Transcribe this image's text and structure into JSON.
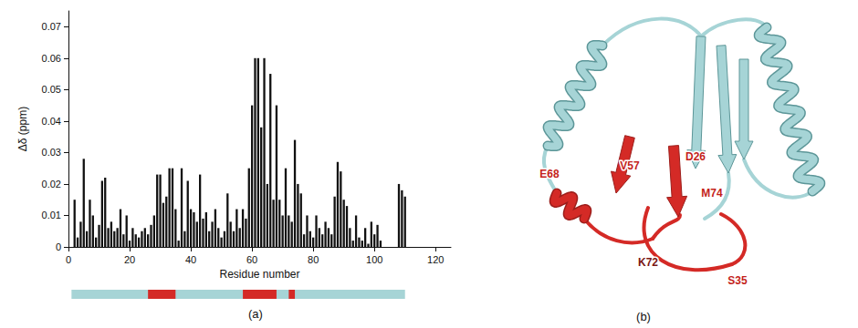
{
  "chart_data": {
    "type": "bar",
    "x_label": "Residue number",
    "y_label": "Δδ (ppm)",
    "x": [
      1,
      2,
      3,
      4,
      5,
      6,
      7,
      8,
      9,
      10,
      11,
      12,
      13,
      14,
      15,
      16,
      17,
      18,
      19,
      20,
      21,
      22,
      23,
      24,
      25,
      26,
      27,
      28,
      29,
      30,
      31,
      32,
      33,
      34,
      35,
      36,
      37,
      38,
      39,
      40,
      41,
      42,
      43,
      44,
      45,
      46,
      47,
      48,
      49,
      50,
      51,
      52,
      53,
      54,
      55,
      56,
      57,
      58,
      59,
      60,
      61,
      62,
      63,
      64,
      65,
      66,
      67,
      68,
      69,
      70,
      71,
      72,
      73,
      74,
      75,
      76,
      77,
      78,
      79,
      80,
      81,
      82,
      83,
      84,
      85,
      86,
      87,
      88,
      89,
      90,
      91,
      92,
      93,
      94,
      95,
      96,
      97,
      98,
      99,
      100,
      101,
      102,
      103,
      104,
      105,
      106,
      107,
      108,
      109,
      110
    ],
    "values": [
      null,
      0.015,
      0.003,
      0.008,
      0.028,
      0.005,
      0.015,
      0.01,
      0.003,
      0.007,
      0.021,
      0.022,
      0.006,
      0.008,
      0.005,
      0.006,
      0.012,
      0.004,
      0.01,
      0.002,
      0.006,
      0.004,
      0.003,
      0.005,
      0.006,
      0.004,
      0.007,
      0.01,
      0.023,
      0.023,
      0.014,
      0.016,
      0.025,
      0.025,
      0.012,
      0.002,
      0.025,
      0.005,
      0.021,
      0.012,
      0.011,
      0.008,
      0.023,
      0.009,
      0.011,
      0.005,
      0.008,
      0.012,
      0.006,
      0.003,
      0.005,
      0.017,
      0.008,
      0.005,
      0.012,
      0.006,
      0.012,
      0.009,
      0.025,
      0.045,
      0.06,
      0.06,
      0.038,
      0.06,
      0.02,
      0.055,
      0.015,
      0.045,
      0.015,
      0.01,
      0.025,
      0.01,
      0.008,
      0.034,
      0.02,
      0.017,
      0.004,
      0.01,
      0.005,
      0.003,
      0.01,
      0.006,
      0.004,
      0.008,
      0.006,
      0.004,
      0.016,
      0.027,
      0.024,
      0.015,
      0.013,
      0.006,
      0.002,
      0.01,
      0.003,
      0.002,
      0.006,
      0.001,
      0.008,
      0.004,
      0.007,
      0.002,
      null,
      null,
      null,
      null,
      null,
      0.02,
      0.018,
      0.016
    ],
    "color": "#111111",
    "xlim": [
      0,
      125
    ],
    "xticks": [
      0,
      20,
      40,
      60,
      80,
      100,
      120
    ],
    "ylim": [
      0,
      0.075
    ],
    "yticks": [
      0,
      0.01,
      0.02,
      0.03,
      0.04,
      0.05,
      0.06,
      0.07
    ],
    "grid": false
  },
  "sequence_bar": {
    "range": [
      1,
      110
    ],
    "highlighted": [
      [
        26,
        35
      ],
      [
        57,
        68
      ],
      [
        72,
        74
      ]
    ],
    "color": "#a6d4d6",
    "highlight_color": "#d42a26"
  },
  "panel_labels": [
    "(a)",
    "(b)"
  ],
  "structure": {
    "labels": [
      "E68",
      "V57",
      "D26",
      "M74",
      "S35",
      "K72"
    ],
    "color": "#a6d4d6",
    "highlight_color": "#d42a26"
  }
}
